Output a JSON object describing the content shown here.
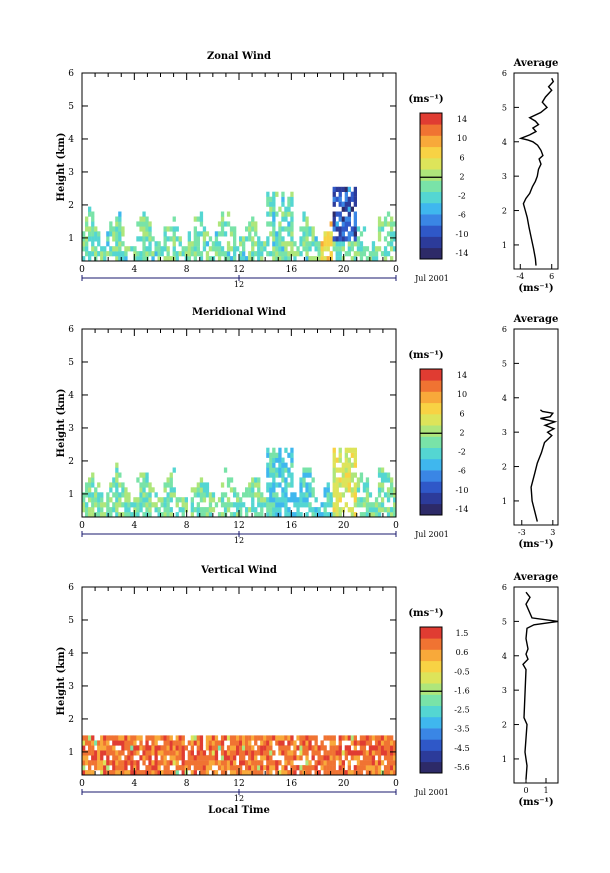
{
  "colors": {
    "ramp": [
      "#2d2a68",
      "#2c3b9a",
      "#2f58c8",
      "#3a86e5",
      "#3fb7ee",
      "#54d6d2",
      "#79e3a8",
      "#aee67b",
      "#dde45a",
      "#f8d244",
      "#f8a93a",
      "#f07332",
      "#e03c32"
    ]
  },
  "chart_data": [
    {
      "id": "zonal",
      "type": "heatmap",
      "title": "Zonal Wind",
      "ylabel": "Height (km)",
      "xlabel": "",
      "x_ticks": [
        "0",
        "4",
        "8",
        "12",
        "16",
        "20",
        "0"
      ],
      "y_ticks": [
        "1",
        "2",
        "3",
        "4",
        "5",
        "6"
      ],
      "date_label": "12",
      "date_suffix": "Jul 2001",
      "xlim": [
        0,
        24
      ],
      "ylim": [
        0.3,
        6
      ],
      "colorbar": {
        "unit": "(ms⁻¹)",
        "ticks": [
          "14",
          "10",
          "6",
          "2",
          "-2",
          "-6",
          "-10",
          "-14"
        ],
        "range": [
          -16,
          16
        ]
      },
      "average": {
        "title": "Average",
        "xlabel": "(ms⁻¹)",
        "x_ticks": [
          "-4",
          "6"
        ],
        "xlim": [
          -6,
          8
        ],
        "profile": [
          [
            1.0,
            0.4
          ],
          [
            0.8,
            0.6
          ],
          [
            0.2,
            0.9
          ],
          [
            -0.5,
            1.2
          ],
          [
            -1.2,
            1.5
          ],
          [
            -1.8,
            1.8
          ],
          [
            -2.4,
            2.0
          ],
          [
            -3.0,
            2.2
          ],
          [
            -2.2,
            2.35
          ],
          [
            -1.0,
            2.5
          ],
          [
            -0.1,
            2.7
          ],
          [
            0.8,
            2.85
          ],
          [
            1.4,
            3.0
          ],
          [
            1.8,
            3.2
          ],
          [
            2.6,
            3.35
          ],
          [
            2.0,
            3.5
          ],
          [
            3.2,
            3.6
          ],
          [
            2.6,
            3.75
          ],
          [
            1.5,
            3.9
          ],
          [
            0.0,
            4.0
          ],
          [
            -1.5,
            4.05
          ],
          [
            -3.8,
            4.1
          ],
          [
            -1.0,
            4.2
          ],
          [
            1.0,
            4.3
          ],
          [
            0.0,
            4.4
          ],
          [
            1.8,
            4.5
          ],
          [
            0.8,
            4.6
          ],
          [
            -1.0,
            4.7
          ],
          [
            2.5,
            4.85
          ],
          [
            4.5,
            5.0
          ],
          [
            3.0,
            5.15
          ],
          [
            4.0,
            5.3
          ],
          [
            6.0,
            5.5
          ],
          [
            5.0,
            5.6
          ],
          [
            6.5,
            5.75
          ],
          [
            6.0,
            5.85
          ]
        ]
      }
    },
    {
      "id": "meridional",
      "type": "heatmap",
      "title": "Meridional Wind",
      "ylabel": "Height (km)",
      "xlabel": "",
      "x_ticks": [
        "0",
        "4",
        "8",
        "12",
        "16",
        "20",
        "0"
      ],
      "y_ticks": [
        "1",
        "2",
        "3",
        "4",
        "5",
        "6"
      ],
      "date_label": "12",
      "date_suffix": "Jul 2001",
      "xlim": [
        0,
        24
      ],
      "ylim": [
        0.3,
        6
      ],
      "colorbar": {
        "unit": "(ms⁻¹)",
        "ticks": [
          "14",
          "10",
          "6",
          "2",
          "-2",
          "-6",
          "-10",
          "-14"
        ],
        "range": [
          -16,
          16
        ]
      },
      "average": {
        "title": "Average",
        "xlabel": "(ms⁻¹)",
        "x_ticks": [
          "-3",
          "3"
        ],
        "xlim": [
          -4.5,
          4
        ],
        "profile": [
          [
            0.0,
            0.4
          ],
          [
            -0.5,
            0.7
          ],
          [
            -1.0,
            1.0
          ],
          [
            -1.2,
            1.4
          ],
          [
            -0.5,
            1.8
          ],
          [
            0.0,
            2.1
          ],
          [
            0.8,
            2.4
          ],
          [
            1.4,
            2.7
          ],
          [
            2.8,
            2.9
          ],
          [
            2.0,
            3.0
          ],
          [
            3.2,
            3.1
          ],
          [
            1.5,
            3.2
          ],
          [
            3.4,
            3.3
          ],
          [
            0.6,
            3.4
          ],
          [
            2.5,
            3.45
          ],
          [
            3.0,
            3.55
          ],
          [
            1.0,
            3.6
          ],
          [
            0.6,
            3.65
          ]
        ]
      }
    },
    {
      "id": "vertical",
      "type": "heatmap",
      "title": "Vertical Wind",
      "ylabel": "Height (km)",
      "xlabel": "Local Time",
      "x_ticks": [
        "0",
        "4",
        "8",
        "12",
        "16",
        "20",
        "0"
      ],
      "y_ticks": [
        "1",
        "2",
        "3",
        "4",
        "5",
        "6"
      ],
      "date_label": "12",
      "date_suffix": "Jul 2001",
      "xlim": [
        0,
        24
      ],
      "ylim": [
        0.3,
        6
      ],
      "colorbar": {
        "unit": "(ms⁻¹)",
        "ticks": [
          "1.5",
          "0.6",
          "-0.5",
          "-1.6",
          "-2.5",
          "-3.5",
          "-4.5",
          "-5.6"
        ],
        "range": [
          -6.2,
          2.0
        ]
      },
      "average": {
        "title": "Average",
        "xlabel": "(ms⁻¹)",
        "x_ticks": [
          "0",
          "1"
        ],
        "xlim": [
          -0.6,
          1.6
        ],
        "profile": [
          [
            0.0,
            0.4
          ],
          [
            0.05,
            0.8
          ],
          [
            -0.05,
            1.2
          ],
          [
            0.0,
            1.6
          ],
          [
            0.05,
            2.0
          ],
          [
            -0.1,
            2.2
          ],
          [
            0.0,
            3.6
          ],
          [
            -0.15,
            3.75
          ],
          [
            0.1,
            3.9
          ],
          [
            0.0,
            4.05
          ],
          [
            0.1,
            4.2
          ],
          [
            0.0,
            4.5
          ],
          [
            0.05,
            4.8
          ],
          [
            0.4,
            4.9
          ],
          [
            1.6,
            5.0
          ],
          [
            0.3,
            5.1
          ],
          [
            0.0,
            5.5
          ],
          [
            0.2,
            5.7
          ],
          [
            0.0,
            5.85
          ]
        ]
      }
    }
  ]
}
